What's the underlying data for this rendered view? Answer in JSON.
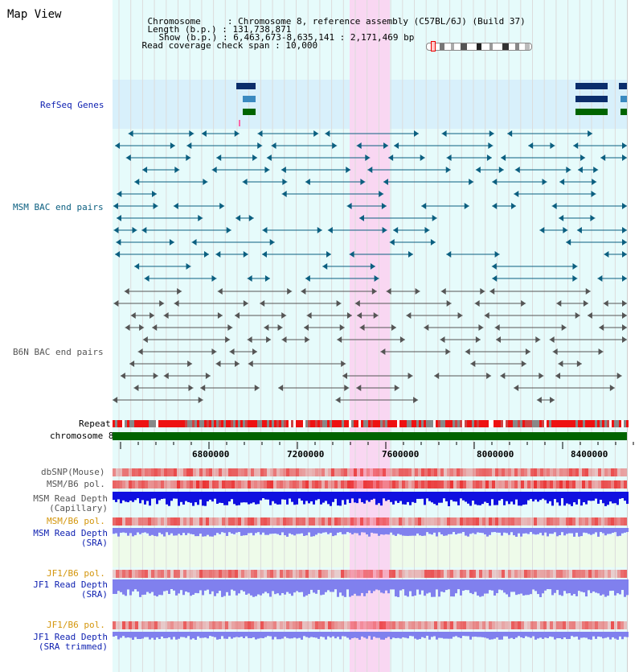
{
  "header": {
    "title": "Map View",
    "chromosome_label": "Chromosome",
    "chromosome_value": "Chromosome 8, reference assembly (C57BL/6J) (Build 37)",
    "length_label": "Length (b.p.)",
    "length_value": "131,738,871",
    "show_label": "Show (b.p.)",
    "show_value": "6,463,673-8,635,141 : 2,171,469 bp",
    "coverage_label": "Read coverage check span",
    "coverage_value": "10,000"
  },
  "tracks": {
    "refseq": "RefSeq Genes",
    "msm_bac": "MSM BAC end pairs",
    "b6n_bac": "B6N BAC end pairs",
    "repeat": "Repeat",
    "chromosome": "chromosome 8",
    "dbsnp": "dbSNP(Mouse)",
    "msm_b6_pol": "MSM/B6 pol.",
    "msm_depth_cap_1": "MSM Read Depth",
    "msm_depth_cap_2": "(Capillary)",
    "msm_b6_pol_sra": "MSM/B6 pol.",
    "msm_depth_sra_1": "MSM Read Depth",
    "msm_depth_sra_2": "(SRA)",
    "jf1_b6_pol": "JF1/B6 pol.",
    "jf1_depth_sra_1": "JF1 Read Depth",
    "jf1_depth_sra_2": "(SRA)",
    "jf1_b6_pol_trim": "JF1/B6 pol.",
    "jf1_depth_trim_1": "JF1 Read Depth",
    "jf1_depth_trim_2": "(SRA trimmed)"
  },
  "axis": {
    "ticks": [
      "6800000",
      "7200000",
      "7600000",
      "8000000",
      "8400000"
    ]
  },
  "colors": {
    "refseq_bg": "#d8f0fb",
    "track_bg": "#e6fbfb",
    "highlight": "#f9d7f2",
    "msm_feature": "#0b5f80",
    "b6n_feature": "#555555",
    "chromosome_bar": "#006400",
    "depth_cap": "#1010e0",
    "depth_sra": "#8080ee",
    "pol": "#f08080"
  }
}
